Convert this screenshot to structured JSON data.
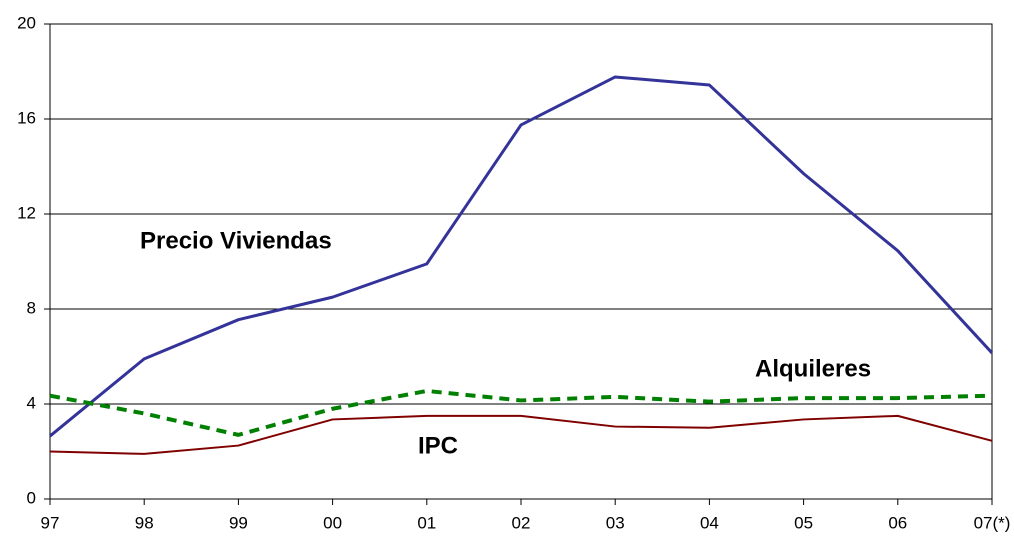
{
  "chart_data": {
    "type": "line",
    "categories": [
      "97",
      "98",
      "99",
      "00",
      "01",
      "02",
      "03",
      "04",
      "05",
      "06",
      "07(*)"
    ],
    "series": [
      {
        "name": "Precio Viviendas",
        "color": "#333399",
        "dash": false,
        "values": [
          2.65,
          5.9,
          7.55,
          8.5,
          9.9,
          15.75,
          17.77,
          17.43,
          13.7,
          10.45,
          6.15
        ]
      },
      {
        "name": "Alquileres",
        "color": "#008000",
        "dash": true,
        "values": [
          4.35,
          3.6,
          2.7,
          3.8,
          4.55,
          4.15,
          4.3,
          4.1,
          4.25,
          4.25,
          4.35
        ]
      },
      {
        "name": "IPC",
        "color": "#800000",
        "dash": false,
        "values": [
          2.0,
          1.9,
          2.25,
          3.35,
          3.5,
          3.5,
          3.05,
          3.0,
          3.35,
          3.5,
          2.45
        ]
      }
    ],
    "ylim": [
      0,
      20
    ],
    "yticks": [
      0,
      4,
      8,
      12,
      16,
      20
    ],
    "grid": true
  }
}
